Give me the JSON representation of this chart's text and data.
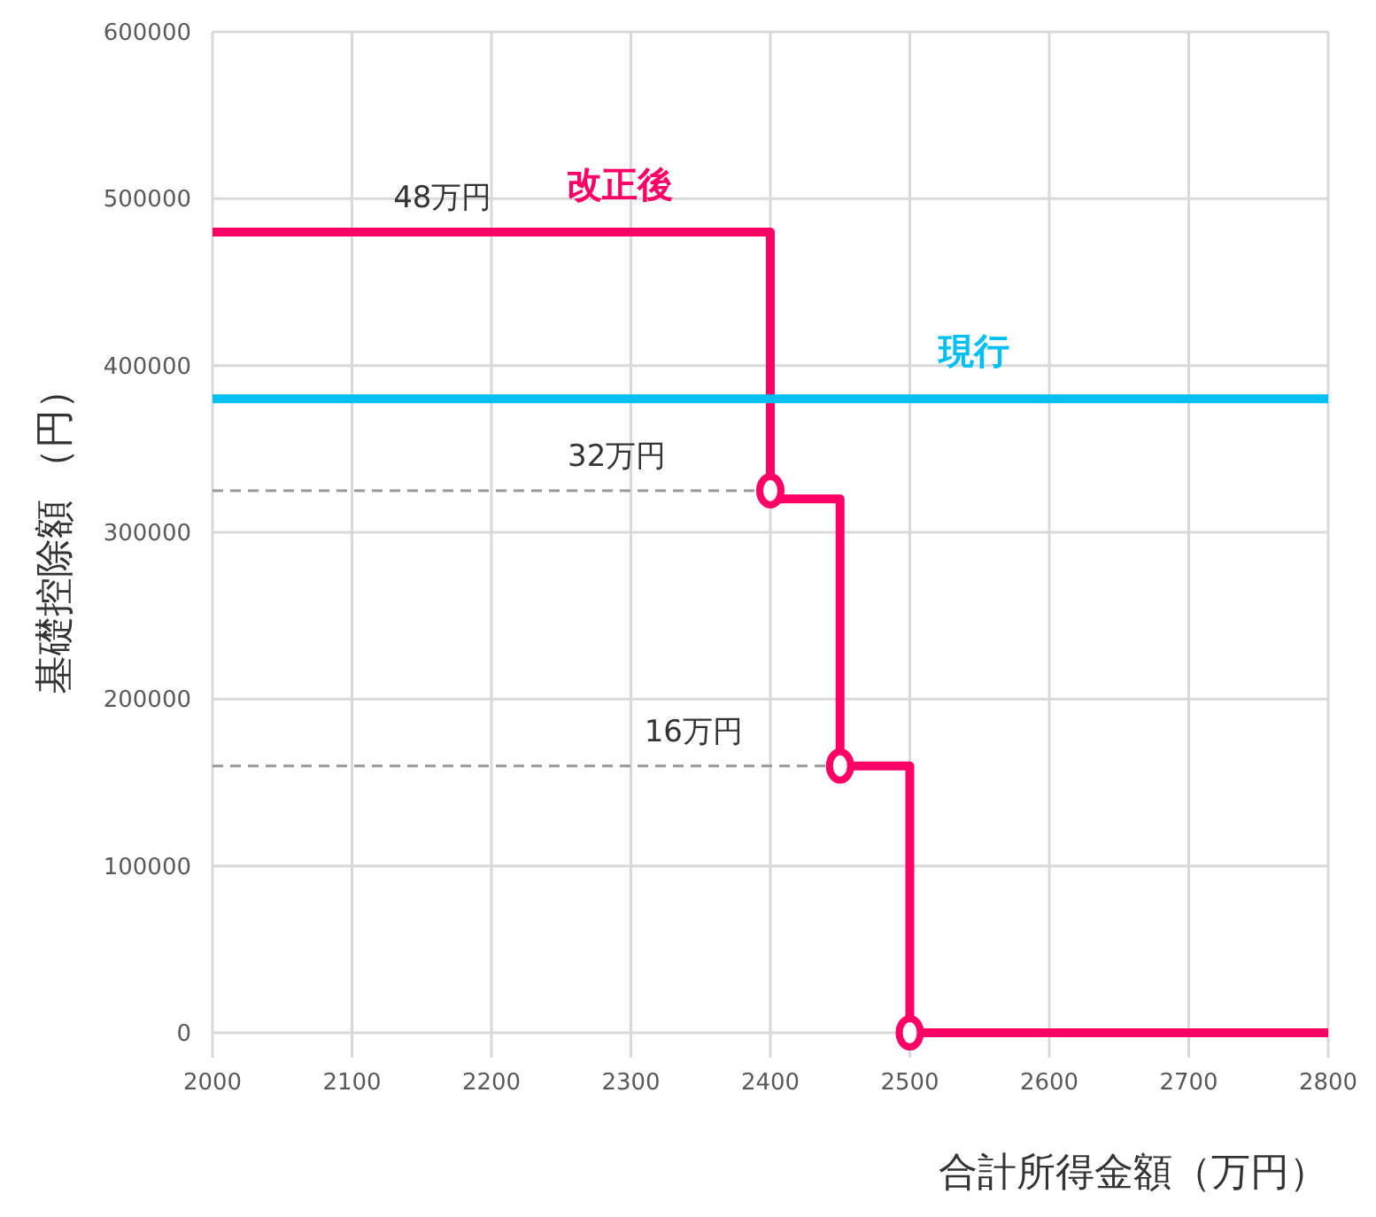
{
  "chart_data": {
    "type": "line",
    "xlabel": "合計所得金額（万円）",
    "ylabel": "基礎控除額 （円）",
    "xlim": [
      2000,
      2800
    ],
    "xticks": [
      2000,
      2100,
      2200,
      2300,
      2400,
      2500,
      2600,
      2700,
      2800
    ],
    "ylim": [
      0,
      600000
    ],
    "yticks": [
      0,
      100000,
      200000,
      300000,
      400000,
      500000,
      600000
    ],
    "grid": true,
    "series": [
      {
        "name": "改正後",
        "color": "#ff0066",
        "marker": "none",
        "line_style": "solid",
        "x": [
          2000,
          2400,
          2400,
          2450,
          2450,
          2500,
          2500,
          2800
        ],
        "values": [
          480000,
          480000,
          320000,
          320000,
          160000,
          160000,
          0,
          0
        ]
      },
      {
        "name": "現行",
        "color": "#00bff3",
        "marker": "none",
        "line_style": "solid",
        "x": [
          2000,
          2800
        ],
        "values": [
          380000,
          380000
        ]
      },
      {
        "color": "#999999",
        "type": "line",
        "marker": "none",
        "line_style": "dashed",
        "x": [
          2000,
          2400
        ],
        "values": [
          325000,
          325000
        ]
      },
      {
        "color": "#999999",
        "type": "line",
        "marker": "none",
        "line_style": "dashed",
        "x": [
          2000,
          2450
        ],
        "values": [
          160000,
          160000
        ]
      },
      {
        "color": "#ff0066",
        "type": "scatter",
        "marker": "circle",
        "x": [
          2400,
          2450,
          2500
        ],
        "values": [
          325000,
          160000,
          0
        ]
      }
    ],
    "annotations": [
      {
        "text": "48万円",
        "x": 2165,
        "y": 480000
      },
      {
        "text": "32万円",
        "x": 2290,
        "y": 325000
      },
      {
        "text": "16万円",
        "x": 2345,
        "y": 160000
      }
    ]
  }
}
